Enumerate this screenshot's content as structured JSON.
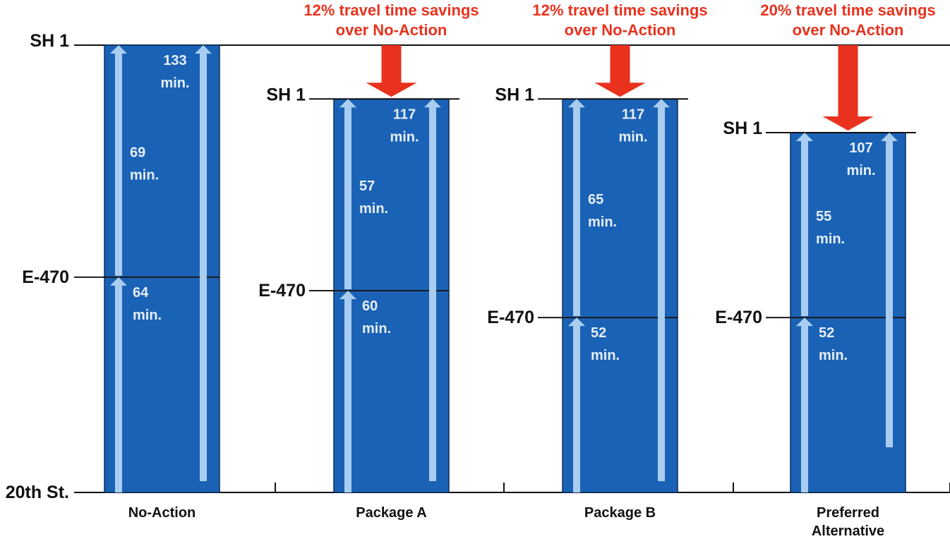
{
  "chart_data": {
    "type": "bar",
    "title": "",
    "xlabel": "",
    "ylabel": "",
    "units": "min.",
    "categories": [
      {
        "name": "No-Action",
        "name_lines": [
          "No-Action"
        ],
        "total": 133,
        "segments": [
          {
            "from": "20th St.",
            "to": "E-470",
            "minutes": 64
          },
          {
            "from": "E-470",
            "to": "SH 1",
            "minutes": 69
          }
        ],
        "stops": [
          "20th St.",
          "E-470",
          "SH 1"
        ],
        "savings": null
      },
      {
        "name": "Package A",
        "name_lines": [
          "Package A"
        ],
        "total": 117,
        "segments": [
          {
            "from": "20th St.",
            "to": "E-470",
            "minutes": 60
          },
          {
            "from": "E-470",
            "to": "SH 1",
            "minutes": 57
          }
        ],
        "stops": [
          "E-470",
          "SH 1"
        ],
        "savings": {
          "percent": 12,
          "lines": [
            "12% travel time savings",
            "over No-Action"
          ]
        }
      },
      {
        "name": "Package B",
        "name_lines": [
          "Package B"
        ],
        "total": 117,
        "segments": [
          {
            "from": "20th St.",
            "to": "E-470",
            "minutes": 52
          },
          {
            "from": "E-470",
            "to": "SH 1",
            "minutes": 65
          }
        ],
        "stops": [
          "E-470",
          "SH 1"
        ],
        "savings": {
          "percent": 12,
          "lines": [
            "12% travel time savings",
            "over No-Action"
          ]
        }
      },
      {
        "name": "Preferred Alternative",
        "name_lines": [
          "Preferred",
          "Alternative"
        ],
        "total": 107,
        "segments": [
          {
            "from": "20th St.",
            "to": "E-470",
            "minutes": 52
          },
          {
            "from": "E-470",
            "to": "SH 1",
            "minutes": 55
          }
        ],
        "stops": [
          "E-470",
          "SH 1"
        ],
        "savings": {
          "percent": 20,
          "lines": [
            "20% travel time savings",
            "over No-Action"
          ]
        }
      }
    ],
    "ylim": [
      0,
      133
    ],
    "colors": {
      "bar": "#1a62b5",
      "arrow": "#a9cdf0",
      "savings_arrow": "#e8321e",
      "axis": "#111111"
    }
  }
}
